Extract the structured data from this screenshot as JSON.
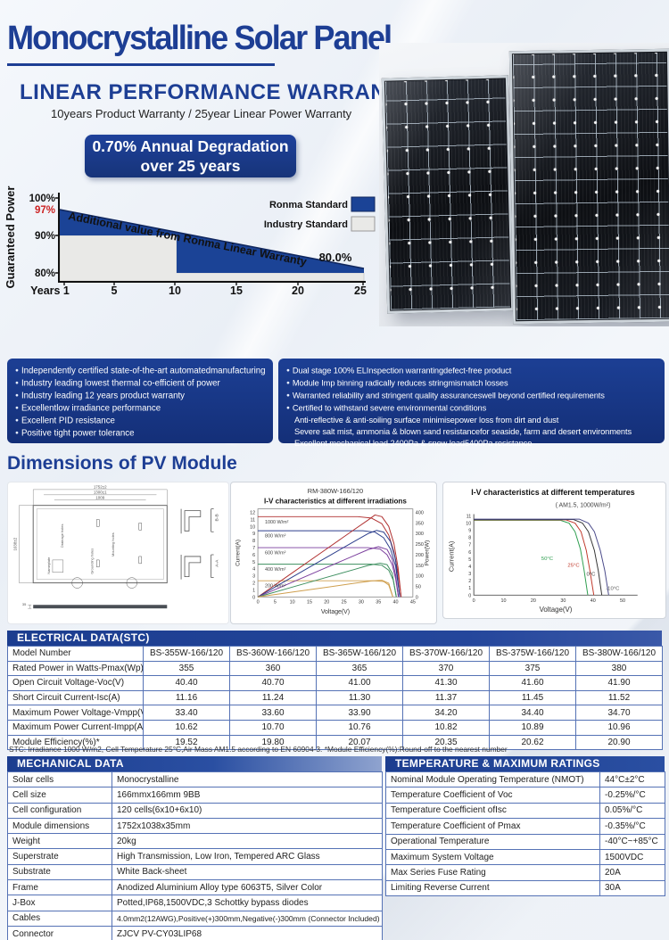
{
  "header": {
    "title": "Monocrystalline Solar Panel",
    "warranty_heading": "LINEAR PERFORMANCE WARRANTY",
    "warranty_sub": "10years Product Warranty / 25year Linear Power Warranty",
    "badge_line1": "0.70% Annual Degradation",
    "badge_line2": "over 25 years"
  },
  "features_left": [
    "Independently certified state-of-the-art automatedmanufacturing",
    "Industry leading lowest thermal co-efficient of power",
    "Industry leading 12 years product warranty",
    "Excellentlow irradiance performance",
    "Excellent PID resistance",
    "Positive tight power tolerance"
  ],
  "features_right": [
    "Dual stage 100% ELInspection warrantingdefect-free product",
    "Module Imp binning radically reduces stringmismatch losses",
    "Warranted reliability and stringent quality assuranceswell beyond certified requirements",
    "Certified to withstand severe environmental conditions"
  ],
  "features_right_sub": [
    "Anti-reflective & anti-soiling surface minimisepower loss from dirt and dust",
    "Severe salt mist, ammonia & blown sand resistancefor seaside, farm and desert environments",
    "Excellent mechanical load 2400Pa & snow load5400Pa resistance"
  ],
  "dimensions_heading": "Dimensions of PV Module",
  "drawing": {
    "dim_top_outer": "1752±2",
    "dim_top_mid": "1300±1",
    "dim_top_inner": "1009",
    "dim_left": "1038±2",
    "label_drainage": "Drainage holes",
    "label_mounting": "Mounting holes",
    "label_grounding": "Grounding holes",
    "label_nameplate": "Nameplate",
    "section_b": "B-B",
    "section_a": "A-A",
    "thickness": "35"
  },
  "chart_data": [
    {
      "type": "area",
      "name": "linear-performance-warranty",
      "ylabel": "Guaranteed Power",
      "yticks": [
        "100%",
        "97%",
        "90%",
        "80%"
      ],
      "xticks": [
        "Years 1",
        "5",
        "10",
        "15",
        "20",
        "25"
      ],
      "annotation": "Additional value from Ronma Linear Warranty",
      "end_label": "80.0%",
      "legend": [
        "Ronma Standard",
        "Industry Standard"
      ],
      "ylim": [
        78,
        100
      ],
      "series": [
        {
          "name": "Ronma Standard",
          "color": "#1b4396",
          "x": [
            1,
            25
          ],
          "y": [
            97,
            80.2
          ]
        },
        {
          "name": "Industry Standard",
          "color": "#e9e9e7",
          "x": [
            1,
            10,
            10,
            25
          ],
          "y": [
            90,
            90,
            80,
            80
          ]
        }
      ]
    },
    {
      "type": "line",
      "title": "RM-380W-166/120",
      "subtitle": "I-V characteristics at different irradiations",
      "xlabel": "Voltage(V)",
      "ylabel_left": "Current(A)",
      "ylabel_right": "Power(W)",
      "xlim": [
        0,
        45
      ],
      "ylim_left": [
        0,
        12
      ],
      "ylim_right": [
        0,
        400
      ],
      "xticks": [
        "0",
        "5",
        "10",
        "15",
        "20",
        "25",
        "30",
        "35",
        "40",
        "45"
      ],
      "yticks_left": [
        "0",
        "1",
        "2",
        "3",
        "4",
        "5",
        "6",
        "7",
        "8",
        "9",
        "10",
        "11",
        "12"
      ],
      "yticks_right": [
        "0",
        "50",
        "100",
        "150",
        "200",
        "250",
        "300",
        "350",
        "400"
      ],
      "series": [
        {
          "name": "1000 W/m²",
          "color": "#b03030",
          "isc_A": 11.4,
          "voc_V": 41.6,
          "pmax_W": 390
        },
        {
          "name": "800 W/m²",
          "color": "#2c3e8c",
          "isc_A": 9.4,
          "voc_V": 41.2,
          "pmax_W": 315
        },
        {
          "name": "600 W/m²",
          "color": "#7b3f9d",
          "isc_A": 7.0,
          "voc_V": 40.8,
          "pmax_W": 238
        },
        {
          "name": "400 W/m²",
          "color": "#3d8f5f",
          "isc_A": 4.65,
          "voc_V": 40.2,
          "pmax_W": 160
        },
        {
          "name": "200 W/m²",
          "color": "#cf9f4e",
          "isc_A": 2.3,
          "voc_V": 39.2,
          "pmax_W": 79
        }
      ]
    },
    {
      "type": "line",
      "title": "I-V characteristics at different temperatures",
      "subtitle": "( AM1.5,  1000W/m²)",
      "xlabel": "Voltage(V)",
      "ylabel": "Current(A)",
      "xlim": [
        0,
        55
      ],
      "ylim": [
        0,
        11
      ],
      "xticks": [
        "0",
        "10",
        "20",
        "30",
        "40",
        "50"
      ],
      "yticks": [
        "0",
        "1",
        "2",
        "3",
        "4",
        "5",
        "6",
        "7",
        "8",
        "9",
        "10",
        "11"
      ],
      "series": [
        {
          "name": "50°C",
          "color": "#2e9e4f",
          "isc_A": 10.4,
          "voc_V": 38.3
        },
        {
          "name": "25°C",
          "color": "#c0392b",
          "isc_A": 10.45,
          "voc_V": 40.3
        },
        {
          "name": "0°C",
          "color": "#333333",
          "isc_A": 10.5,
          "voc_V": 43.0
        },
        {
          "name": "-10°C",
          "color": "#4a4a8a",
          "isc_A": 10.55,
          "voc_V": 45.3
        }
      ]
    }
  ],
  "electrical": {
    "title": "ELECTRICAL DATA(STC)",
    "rows": [
      {
        "label": "Model Number",
        "values": [
          "BS-355W-166/120",
          "BS-360W-166/120",
          "BS-365W-166/120",
          "BS-370W-166/120",
          "BS-375W-166/120",
          "BS-380W-166/120"
        ]
      },
      {
        "label": "Rated Power in Watts-Pmax(Wp)",
        "values": [
          "355",
          "360",
          "365",
          "370",
          "375",
          "380"
        ]
      },
      {
        "label": "Open Circuit Voltage-Voc(V)",
        "values": [
          "40.40",
          "40.70",
          "41.00",
          "41.30",
          "41.60",
          "41.90"
        ]
      },
      {
        "label": "Short Circuit Current-Isc(A)",
        "values": [
          "11.16",
          "11.24",
          "11.30",
          "11.37",
          "11.45",
          "11.52"
        ]
      },
      {
        "label": "Maximum Power Voltage-Vmpp(V)",
        "values": [
          "33.40",
          "33.60",
          "33.90",
          "34.20",
          "34.40",
          "34.70"
        ]
      },
      {
        "label": "Maximum Power Current-Impp(A)",
        "values": [
          "10.62",
          "10.70",
          "10.76",
          "10.82",
          "10.89",
          "10.96"
        ]
      },
      {
        "label": "Module Efficiency(%)*",
        "values": [
          "19.52",
          "19.80",
          "20.07",
          "20.35",
          "20.62",
          "20.90"
        ]
      }
    ]
  },
  "stc_note": "STC: Irradiance 1000 W/m2, Cell Temperature 25°C,Air Mass AM1.5 according to EN 60904-3.    *Module Efficiency(%):Round-off to the nearest number",
  "mechanical": {
    "title": "MECHANICAL DATA",
    "rows": [
      {
        "label": "Solar cells",
        "value": "Monocrystalline"
      },
      {
        "label": "Cell size",
        "value": "166mmx166mm 9BB"
      },
      {
        "label": "Cell configuration",
        "value": "120 cells(6x10+6x10)"
      },
      {
        "label": "Module dimensions",
        "value": "1752x1038x35mm"
      },
      {
        "label": "Weight",
        "value": "20kg"
      },
      {
        "label": "Superstrate",
        "value": "High Transmission, Low Iron, Tempered ARC Glass"
      },
      {
        "label": "Substrate",
        "value": "White Back-sheet"
      },
      {
        "label": "Frame",
        "value": "Anodized Aluminium Alloy type 6063T5, Silver Color"
      },
      {
        "label": "J-Box",
        "value": "Potted,IP68,1500VDC,3 Schottky bypass diodes"
      },
      {
        "label": "Cables",
        "value": "4.0mm2(12AWG),Positive(+)300mm,Negative(-)300mm (Connector Included)"
      },
      {
        "label": "Connector",
        "value": "ZJCV PV-CY03LIP68"
      }
    ]
  },
  "temperature": {
    "title": "TEMPERATURE & MAXIMUM RATINGS",
    "rows": [
      {
        "label": "Nominal Module Operating Temperature (NMOT)",
        "value": "44°C±2°C"
      },
      {
        "label": "Temperature Coefficient of Voc",
        "value": "-0.25%/°C"
      },
      {
        "label": "Temperature Coefficient ofIsc",
        "value": "0.05%/°C"
      },
      {
        "label": "Temperature Coefficient of Pmax",
        "value": "-0.35%/°C"
      },
      {
        "label": "Operational Temperature",
        "value": "-40°C~+85°C"
      },
      {
        "label": "Maximum System Voltage",
        "value": "1500VDC"
      },
      {
        "label": "Max Series Fuse Rating",
        "value": "20A"
      },
      {
        "label": "Limiting Reverse Current",
        "value": "30A"
      }
    ]
  }
}
